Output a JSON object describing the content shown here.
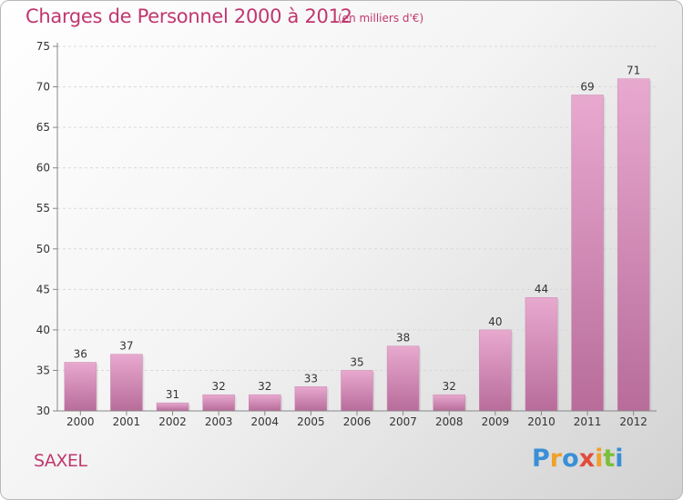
{
  "header": {
    "title": "Charges de Personnel 2000 à 2012",
    "subtitle": "(en milliers d'€)"
  },
  "entity": "SAXEL",
  "logo": {
    "text": "Proxiti",
    "letters": [
      {
        "ch": "P",
        "color": "#3a8fd6"
      },
      {
        "ch": "r",
        "color": "#f0a12a"
      },
      {
        "ch": "o",
        "color": "#3a8fd6"
      },
      {
        "ch": "x",
        "color": "#e24b3b"
      },
      {
        "ch": "i",
        "color": "#f0a12a"
      },
      {
        "ch": "t",
        "color": "#7bbf3a"
      },
      {
        "ch": "i",
        "color": "#3a8fd6"
      }
    ]
  },
  "chart_data": {
    "type": "bar",
    "title": "Charges de Personnel 2000 à 2012",
    "subtitle": "(en milliers d'€)",
    "categories": [
      "2000",
      "2001",
      "2002",
      "2003",
      "2004",
      "2005",
      "2006",
      "2007",
      "2008",
      "2009",
      "2010",
      "2011",
      "2012"
    ],
    "values": [
      36,
      37,
      31,
      32,
      32,
      33,
      35,
      38,
      32,
      40,
      44,
      69,
      71
    ],
    "ylim": [
      30,
      75
    ],
    "yticks": [
      30,
      35,
      40,
      45,
      50,
      55,
      60,
      65,
      70,
      75
    ],
    "grid": true,
    "bar_color_top": "#e8a9cf",
    "bar_color_bottom": "#b86c9a",
    "text_color": "#333333",
    "accent_color": "#c0376e"
  }
}
